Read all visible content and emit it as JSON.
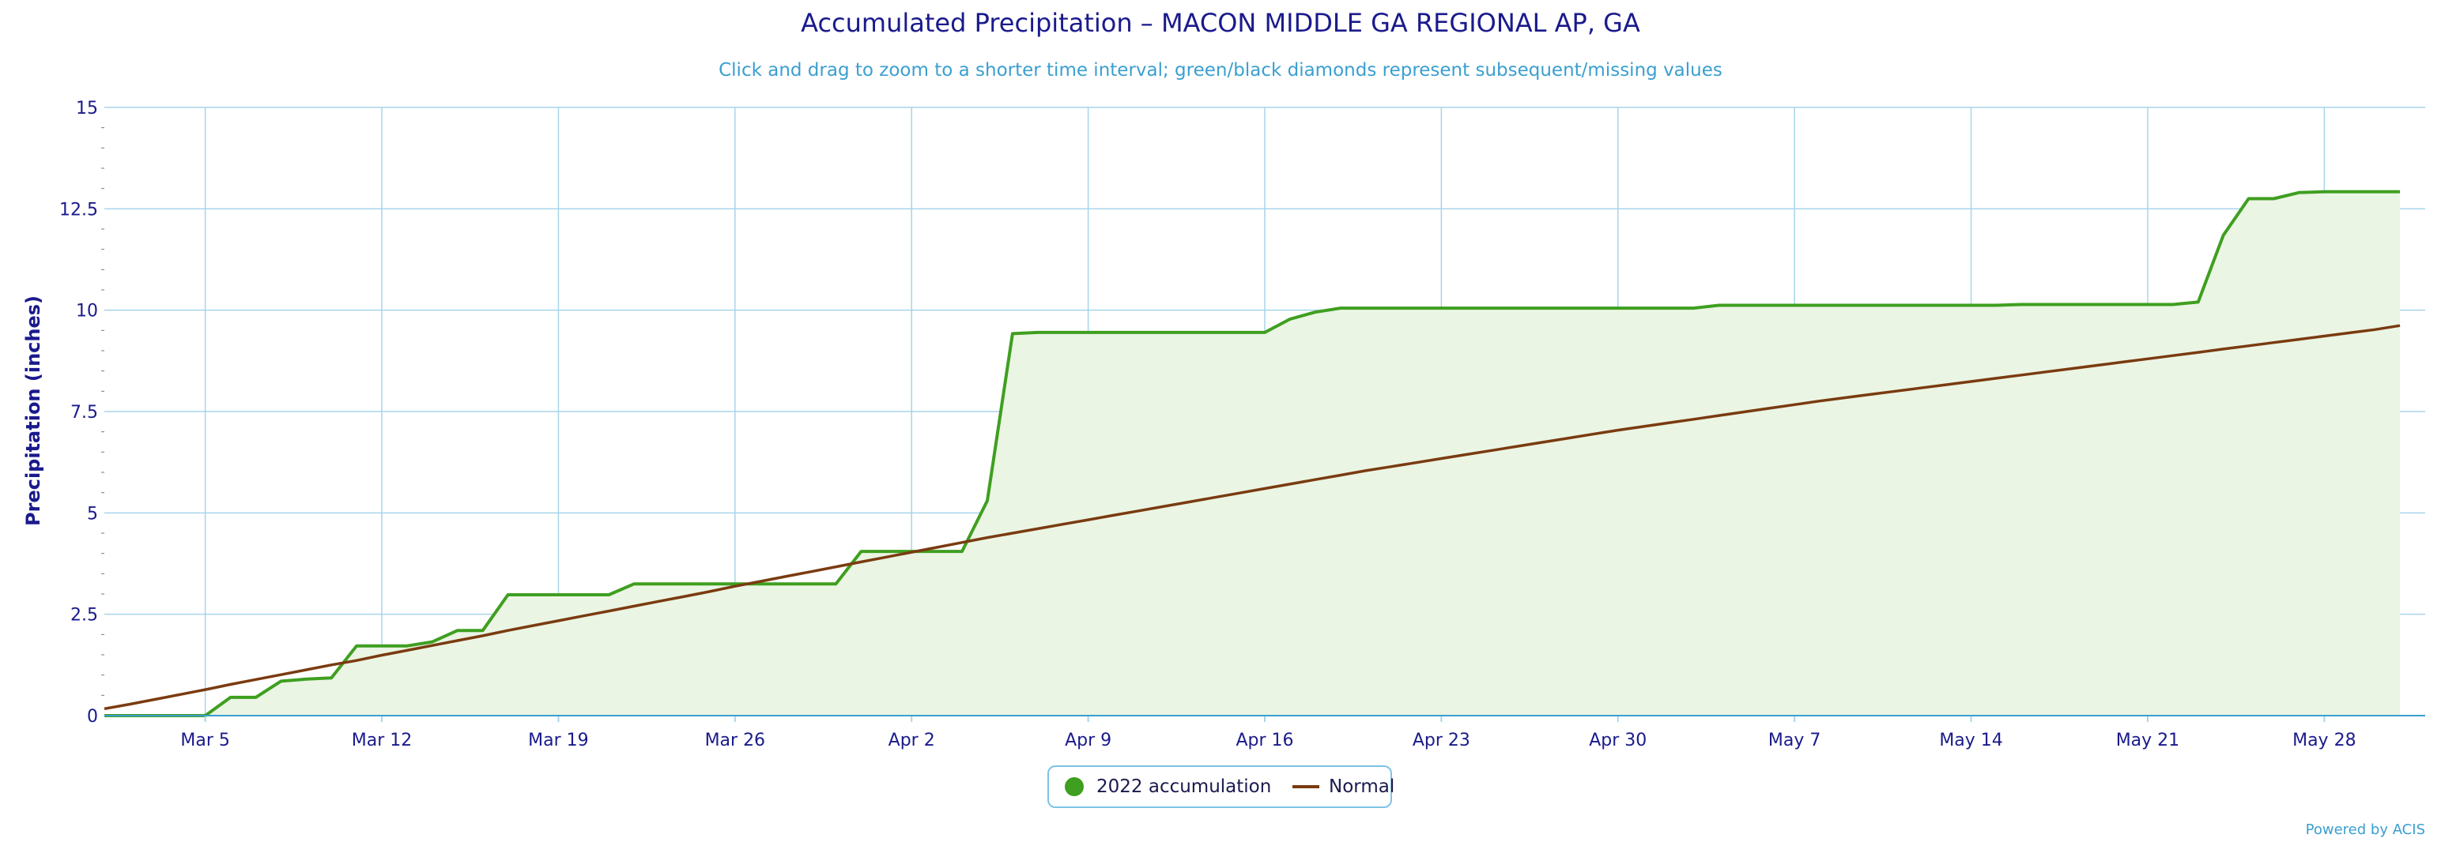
{
  "chart_data": {
    "type": "area",
    "title": "Accumulated Precipitation – MACON MIDDLE GA REGIONAL AP, GA",
    "subtitle": "Click and drag to zoom to a shorter time interval; green/black diamonds represent subsequent/missing values",
    "ylabel": "Precipitation (inches)",
    "xlabel": "",
    "ylim": [
      0,
      15
    ],
    "yticks": [
      0,
      2.5,
      5,
      7.5,
      10,
      12.5,
      15
    ],
    "ytick_labels": [
      "0",
      "2.5",
      "5",
      "7.5",
      "10",
      "12.5",
      "15"
    ],
    "x_range_days": [
      "Mar 1",
      "May 31"
    ],
    "xtick_labels": [
      "Mar 5",
      "Mar 12",
      "Mar 19",
      "Mar 26",
      "Apr 2",
      "Apr 9",
      "Apr 16",
      "Apr 23",
      "Apr 30",
      "May 7",
      "May 14",
      "May 21",
      "May 28"
    ],
    "grid": true,
    "legend_position": "bottom-center",
    "series": [
      {
        "name": "2022 accumulation",
        "color": "#3f9f20",
        "fill": "#ebf5e4",
        "values": [
          0,
          0,
          0,
          0,
          0,
          0.45,
          0.45,
          0.85,
          0.9,
          0.93,
          1.72,
          1.72,
          1.72,
          1.82,
          2.1,
          2.1,
          2.98,
          2.98,
          2.98,
          2.98,
          2.98,
          3.25,
          3.25,
          3.25,
          3.25,
          3.25,
          3.25,
          3.25,
          3.25,
          3.25,
          4.05,
          4.05,
          4.05,
          4.05,
          4.05,
          5.3,
          9.42,
          9.45,
          9.45,
          9.45,
          9.45,
          9.45,
          9.45,
          9.45,
          9.45,
          9.45,
          9.45,
          9.78,
          9.95,
          10.05,
          10.05,
          10.05,
          10.05,
          10.05,
          10.05,
          10.05,
          10.05,
          10.05,
          10.05,
          10.05,
          10.05,
          10.05,
          10.05,
          10.05,
          10.12,
          10.12,
          10.12,
          10.12,
          10.12,
          10.12,
          10.12,
          10.12,
          10.12,
          10.12,
          10.12,
          10.12,
          10.14,
          10.14,
          10.14,
          10.14,
          10.14,
          10.14,
          10.14,
          10.2,
          11.85,
          12.75,
          12.75,
          12.9,
          12.92,
          12.92,
          12.92,
          12.92
        ]
      },
      {
        "name": "Normal",
        "color": "#7a3b10",
        "values": [
          0.17,
          0.28,
          0.4,
          0.52,
          0.64,
          0.77,
          0.89,
          1.01,
          1.13,
          1.25,
          1.36,
          1.49,
          1.61,
          1.73,
          1.85,
          1.97,
          2.1,
          2.22,
          2.34,
          2.46,
          2.58,
          2.7,
          2.82,
          2.94,
          3.06,
          3.19,
          3.31,
          3.43,
          3.55,
          3.67,
          3.79,
          3.91,
          4.03,
          4.15,
          4.27,
          4.39,
          4.5,
          4.61,
          4.72,
          4.83,
          4.94,
          5.05,
          5.16,
          5.27,
          5.38,
          5.49,
          5.6,
          5.71,
          5.82,
          5.93,
          6.04,
          6.14,
          6.24,
          6.34,
          6.44,
          6.54,
          6.64,
          6.74,
          6.84,
          6.94,
          7.04,
          7.13,
          7.22,
          7.31,
          7.4,
          7.49,
          7.58,
          7.67,
          7.76,
          7.84,
          7.92,
          8.0,
          8.08,
          8.16,
          8.24,
          8.32,
          8.4,
          8.48,
          8.56,
          8.64,
          8.72,
          8.8,
          8.88,
          8.96,
          9.04,
          9.12,
          9.2,
          9.28,
          9.36,
          9.44,
          9.52,
          9.62
        ]
      }
    ]
  },
  "credit": "Powered by ACIS",
  "colors": {
    "title": "#1a1a8c",
    "subtitle": "#3a9fd0",
    "axis_labels": "#1a1a8c",
    "grid": "#a8d4ea",
    "area_line": "#3f9f20",
    "area_fill": "#ebf5e4",
    "normal_line": "#7a3b10"
  }
}
